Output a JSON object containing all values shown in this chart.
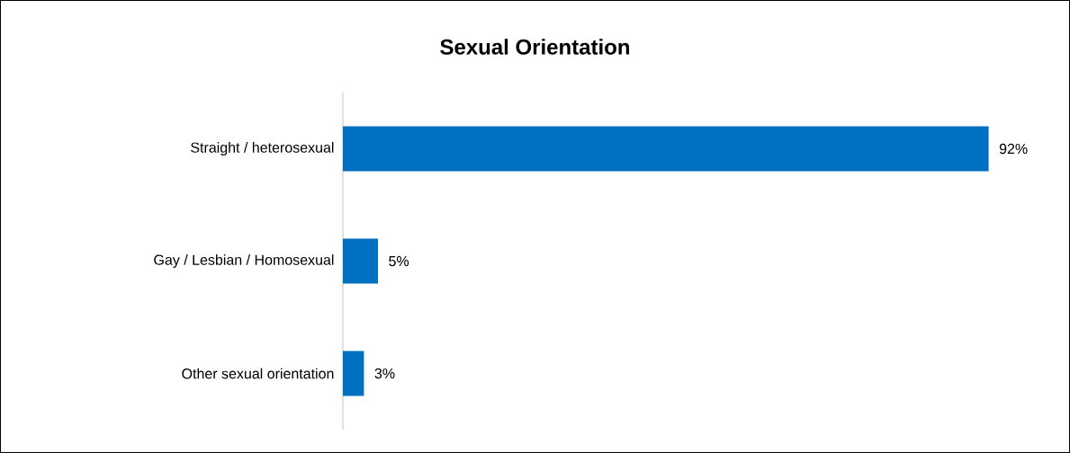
{
  "chart_data": {
    "type": "bar",
    "orientation": "horizontal",
    "title": "Sexual Orientation",
    "categories": [
      "Straight / heterosexual",
      "Gay / Lesbian / Homosexual",
      "Other sexual orientation"
    ],
    "values": [
      92,
      5,
      3
    ],
    "value_labels": [
      "92%",
      "5%",
      "3%"
    ],
    "color": "#0070c0"
  }
}
